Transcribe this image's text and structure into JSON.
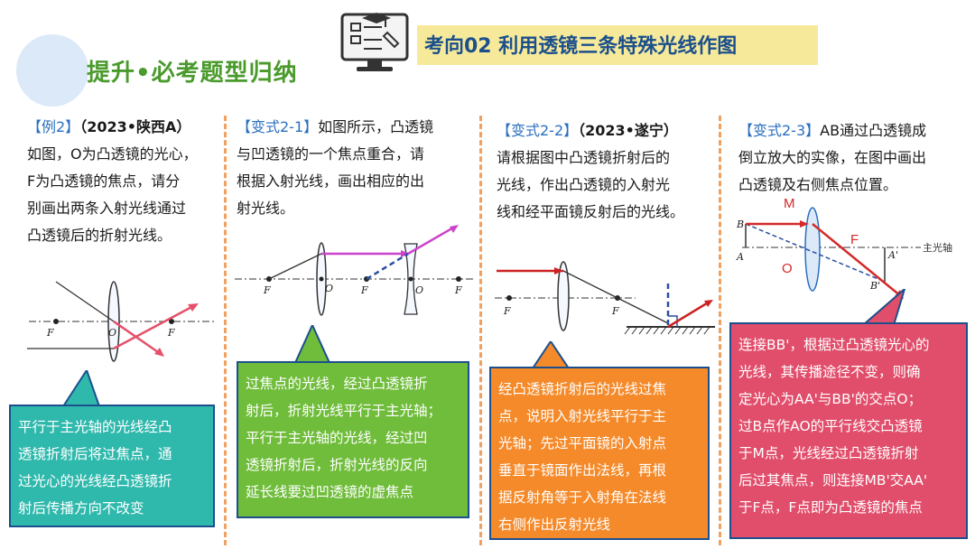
{
  "header": {
    "brand_title": "提升•必考题型归纳",
    "topic": "考向02  利用透镜三条特殊光线作图"
  },
  "columns": [
    {
      "tag": "【例2】",
      "source": "（2023•陕西A）",
      "question_lines": [
        "如图，O为凸透镜的光心，",
        "F为凸透镜的焦点，请分",
        "别画出两条入射光线通过",
        "凸透镜后的折射光线。"
      ],
      "figure_labels": {
        "focus_left": "F",
        "center": "O",
        "focus_right": "F"
      },
      "callout_lines": [
        "平行于主光轴的光线经凸",
        "透镜折射后将过焦点，通",
        "过光心的光线经凸透镜折",
        "射后传播方向不改变"
      ]
    },
    {
      "tag": "【变式2-1】",
      "source": "",
      "question_lines": [
        "如图所示，凸透镜",
        "与凹透镜的一个焦点重合，请",
        "根据入射光线，画出相应的出",
        "射光线。"
      ],
      "figure_labels": {
        "f1": "F",
        "o1": "O",
        "f2": "F",
        "o2": "O",
        "f3": "F"
      },
      "callout_lines": [
        "过焦点的光线，经过凸透镜折",
        "射后，折射光线平行于主光轴；",
        "平行于主光轴的光线，经过凹",
        "透镜折射后，折射光线的反向",
        "延长线要过凹透镜的虚焦点"
      ]
    },
    {
      "tag": "【变式2-2】",
      "source": "（2023•遂宁）",
      "question_lines": [
        "请根据图中凸透镜折射后的",
        "光线，作出凸透镜的入射光",
        "线和经平面镜反射后的光线。"
      ],
      "figure_labels": {
        "f1": "F",
        "f2": "F"
      },
      "callout_lines": [
        "经凸透镜折射后的光线过焦",
        "点，说明入射光线平行于主",
        "光轴；先过平面镜的入射点",
        "垂直于镜面作出法线，再根",
        "据反射角等于入射角在法线",
        "右侧作出反射光线"
      ]
    },
    {
      "tag": "【变式2-3】",
      "source": "",
      "question_lines": [
        "AB通过凸透镜成",
        "倒立放大的实像，在图中画出",
        "凸透镜及右侧焦点位置。"
      ],
      "figure_labels": {
        "B": "B",
        "A": "A",
        "M": "M",
        "O": "O",
        "F": "F",
        "A2": "A'",
        "B2": "B'",
        "axis": "主光轴"
      },
      "callout_lines": [
        "连接BB'，根据过凸透镜光心的",
        "光线，其传播途径不变，则确",
        "定光心为AA'与BB'的交点O；",
        "过B点作AO的平行线交凸透镜",
        "于M点，光线经过凸透镜折射",
        "后过其焦点，则连接MB'交AA'",
        "于F点，F点即为凸透镜的焦点"
      ]
    }
  ],
  "colors": {
    "brand_green": "#4a9a2c",
    "topic_blue": "#1c4f8c",
    "tag_blue": "#2a6fbf",
    "divider_orange": "#f0a060"
  }
}
